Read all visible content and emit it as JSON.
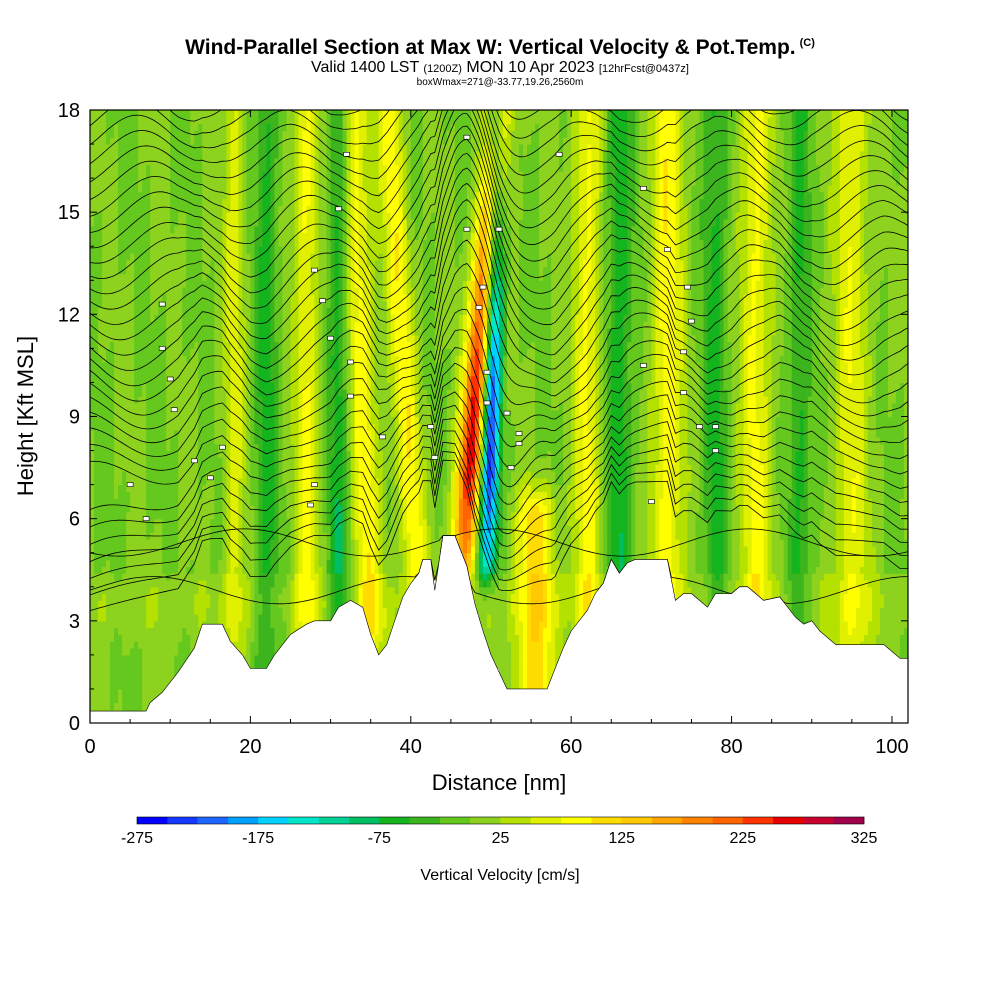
{
  "header": {
    "title": "Wind-Parallel Section at Max W: Vertical Velocity & Pot.Temp.",
    "copyright": "(C)",
    "valid_prefix": "Valid 1400 LST",
    "valid_utc": "(1200Z)",
    "valid_date": "MON 10 Apr 2023",
    "forecast": "[12hrFcst@0437z]",
    "boxinfo": "boxWmax=271@-33.77,19.26,2560m"
  },
  "chart_data": {
    "type": "heatmap",
    "title": "Wind-Parallel Section at Max W: Vertical Velocity & Pot.Temp.",
    "xlabel": "Distance [nm]",
    "ylabel": "Height [Kft MSL]",
    "xlim": [
      0,
      102
    ],
    "ylim": [
      0,
      18
    ],
    "xticks": [
      0,
      20,
      40,
      60,
      80,
      100
    ],
    "yticks": [
      0,
      3,
      6,
      9,
      12,
      15,
      18
    ],
    "colorbar": {
      "label": "Vertical Velocity [cm/s]",
      "ticks": [
        -275,
        -175,
        -75,
        25,
        125,
        225,
        325
      ],
      "levels": [
        -275,
        -250,
        -225,
        -200,
        -175,
        -150,
        -125,
        -100,
        -75,
        -50,
        -25,
        0,
        25,
        50,
        75,
        100,
        125,
        150,
        175,
        200,
        225,
        250,
        275,
        300,
        325
      ],
      "colors": [
        "#0000ff",
        "#1438ff",
        "#1e64ff",
        "#00a0ff",
        "#00d2ff",
        "#00e6c8",
        "#00d296",
        "#00be64",
        "#14b41e",
        "#3cb41e",
        "#64c81e",
        "#8cd21e",
        "#b4e100",
        "#e1f000",
        "#ffff00",
        "#ffdc00",
        "#ffc800",
        "#ffa500",
        "#ff8200",
        "#ff6400",
        "#ff3200",
        "#e60000",
        "#c8002d",
        "#a0004b"
      ]
    },
    "terrain_kft": [
      [
        0,
        0.35
      ],
      [
        7,
        0.35
      ],
      [
        7.5,
        0.6
      ],
      [
        9,
        0.9
      ],
      [
        11,
        1.5
      ],
      [
        13,
        2.2
      ],
      [
        14,
        2.9
      ],
      [
        16.5,
        2.9
      ],
      [
        17.5,
        2.4
      ],
      [
        19,
        2.0
      ],
      [
        20,
        1.6
      ],
      [
        22,
        1.6
      ],
      [
        23,
        2.0
      ],
      [
        24,
        2.3
      ],
      [
        25,
        2.6
      ],
      [
        27,
        2.9
      ],
      [
        28,
        3.0
      ],
      [
        30,
        3.0
      ],
      [
        31,
        3.4
      ],
      [
        32.5,
        3.6
      ],
      [
        34,
        3.4
      ],
      [
        35,
        2.6
      ],
      [
        36,
        2.0
      ],
      [
        37,
        2.3
      ],
      [
        38,
        3.0
      ],
      [
        39,
        3.7
      ],
      [
        40,
        4.1
      ],
      [
        41,
        4.4
      ],
      [
        41.5,
        4.8
      ],
      [
        42.5,
        4.8
      ],
      [
        43,
        3.9
      ],
      [
        44,
        5.5
      ],
      [
        45.5,
        5.5
      ],
      [
        46,
        5.2
      ],
      [
        47,
        4.6
      ],
      [
        48,
        3.5
      ],
      [
        49,
        2.7
      ],
      [
        50,
        2.0
      ],
      [
        51,
        1.5
      ],
      [
        52,
        1.0
      ],
      [
        57,
        1.0
      ],
      [
        58,
        1.6
      ],
      [
        59,
        2.2
      ],
      [
        60,
        2.7
      ],
      [
        62,
        3.3
      ],
      [
        63,
        3.8
      ],
      [
        64,
        4.1
      ],
      [
        65,
        4.8
      ],
      [
        66,
        4.4
      ],
      [
        67,
        4.7
      ],
      [
        68,
        4.8
      ],
      [
        69,
        4.8
      ],
      [
        72,
        4.8
      ],
      [
        73,
        3.6
      ],
      [
        74,
        3.8
      ],
      [
        75,
        3.8
      ],
      [
        76,
        3.6
      ],
      [
        77,
        3.4
      ],
      [
        78,
        3.8
      ],
      [
        80,
        3.8
      ],
      [
        81,
        4.0
      ],
      [
        82,
        4.0
      ],
      [
        84,
        3.6
      ],
      [
        86,
        3.7
      ],
      [
        87,
        3.4
      ],
      [
        88,
        3.1
      ],
      [
        89,
        2.9
      ],
      [
        90,
        3.0
      ],
      [
        91,
        2.7
      ],
      [
        92,
        2.5
      ],
      [
        93,
        2.3
      ],
      [
        98,
        2.3
      ],
      [
        99,
        2.3
      ],
      [
        100,
        2.1
      ],
      [
        101,
        1.9
      ],
      [
        102,
        1.9
      ]
    ],
    "velocity_features": [
      {
        "x": 46.5,
        "z_range": [
          5,
          18
        ],
        "peak": 271,
        "tilt": 0.35,
        "width": 1.6
      },
      {
        "x": 49.5,
        "z_range": [
          5,
          18
        ],
        "peak": -260,
        "tilt": 0.1,
        "width": 1.2
      },
      {
        "x": 55.5,
        "z_range": [
          1,
          6
        ],
        "peak": 110,
        "tilt": 0,
        "width": 2.5
      },
      {
        "x": 41.0,
        "z_range": [
          3,
          18
        ],
        "peak": 90,
        "tilt": -0.25,
        "width": 1.6
      },
      {
        "x": 35.0,
        "z_range": [
          3,
          18
        ],
        "peak": 90,
        "tilt": -0.15,
        "width": 1.8
      },
      {
        "x": 31.0,
        "z_range": [
          3,
          18
        ],
        "peak": -70,
        "tilt": 0,
        "width": 1.3
      },
      {
        "x": 27.0,
        "z_range": [
          3,
          18
        ],
        "peak": 80,
        "tilt": 0,
        "width": 1.5
      },
      {
        "x": 22.0,
        "z_range": [
          2,
          18
        ],
        "peak": -60,
        "tilt": 0,
        "width": 1.4
      },
      {
        "x": 18.0,
        "z_range": [
          2,
          18
        ],
        "peak": 60,
        "tilt": 0,
        "width": 1.3
      },
      {
        "x": 62.0,
        "z_range": [
          3,
          18
        ],
        "peak": 80,
        "tilt": 0,
        "width": 1.8
      },
      {
        "x": 66.0,
        "z_range": [
          4,
          18
        ],
        "peak": -70,
        "tilt": 0,
        "width": 1.6
      },
      {
        "x": 72.0,
        "z_range": [
          4,
          18
        ],
        "peak": 90,
        "tilt": 0,
        "width": 2.0
      },
      {
        "x": 78.0,
        "z_range": [
          4,
          18
        ],
        "peak": -60,
        "tilt": 0,
        "width": 1.5
      },
      {
        "x": 83.0,
        "z_range": [
          4,
          18
        ],
        "peak": 80,
        "tilt": 0,
        "width": 2.0
      },
      {
        "x": 88.5,
        "z_range": [
          3,
          18
        ],
        "peak": -55,
        "tilt": 0,
        "width": 1.4
      },
      {
        "x": 95.0,
        "z_range": [
          2,
          18
        ],
        "peak": 70,
        "tilt": 0,
        "width": 2.2
      }
    ],
    "isentropes_note": "potential temperature contours (black lines), unlabeled values shown as small boxes"
  }
}
